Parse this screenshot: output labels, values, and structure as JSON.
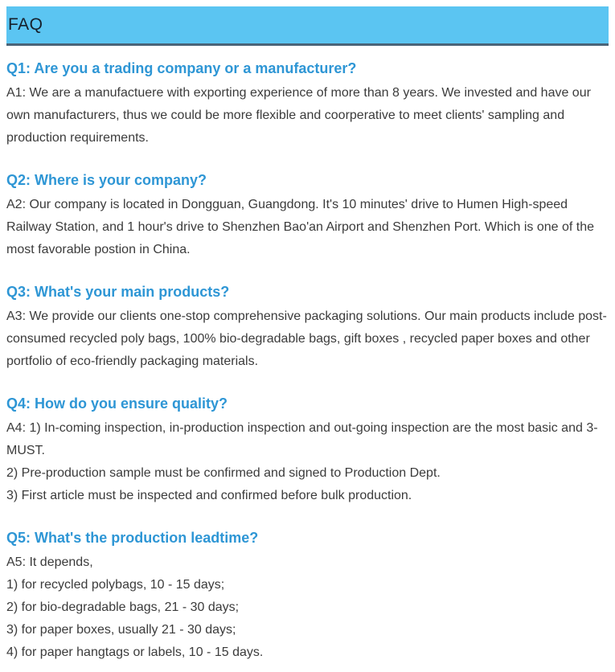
{
  "header": {
    "title": "FAQ"
  },
  "colors": {
    "header_bg": "#5BC5F2",
    "header_border": "#4A6478",
    "question": "#2E96D5",
    "body_text": "#3B3B3B",
    "title_text": "#16202B"
  },
  "faq": {
    "items": [
      {
        "question": "Q1: Are you a trading company or a manufacturer?",
        "answer_lines": [
          "A1: We are a manufactuere with exporting experience of more than 8 years. We invested and have our own manufacturers, thus we could be more flexible and coorperative to meet clients' sampling and production requirements."
        ]
      },
      {
        "question": "Q2: Where is your company?",
        "answer_lines": [
          "A2: Our company is located in Dongguan, Guangdong. It's 10 minutes' drive to Humen High-speed Railway Station, and 1 hour's drive to Shenzhen Bao'an Airport and Shenzhen Port. Which is one of the most favorable postion in China."
        ]
      },
      {
        "question": "Q3: What's your main products?",
        "answer_lines": [
          "A3: We provide our clients one-stop comprehensive packaging solutions. Our main products include post-consumed recycled poly bags, 100% bio-degradable bags, gift boxes , recycled paper boxes and other portfolio of eco-friendly packaging materials."
        ]
      },
      {
        "question": "Q4: How do you ensure quality?",
        "answer_lines": [
          "A4: 1) In-coming inspection, in-production inspection and out-going inspection are the most basic and 3-MUST.",
          "2) Pre-production sample must be confirmed and signed to Production Dept.",
          "3) First article must be inspected and confirmed before bulk production."
        ]
      },
      {
        "question": "Q5: What's the production leadtime?",
        "answer_lines": [
          "A5: It depends,",
          "1) for recycled polybags, 10 - 15 days;",
          "2) for bio-degradable bags, 21 - 30 days;",
          "3) for paper boxes, usually 21 - 30 days;",
          "4) for paper hangtags or labels, 10 - 15 days."
        ]
      }
    ]
  }
}
